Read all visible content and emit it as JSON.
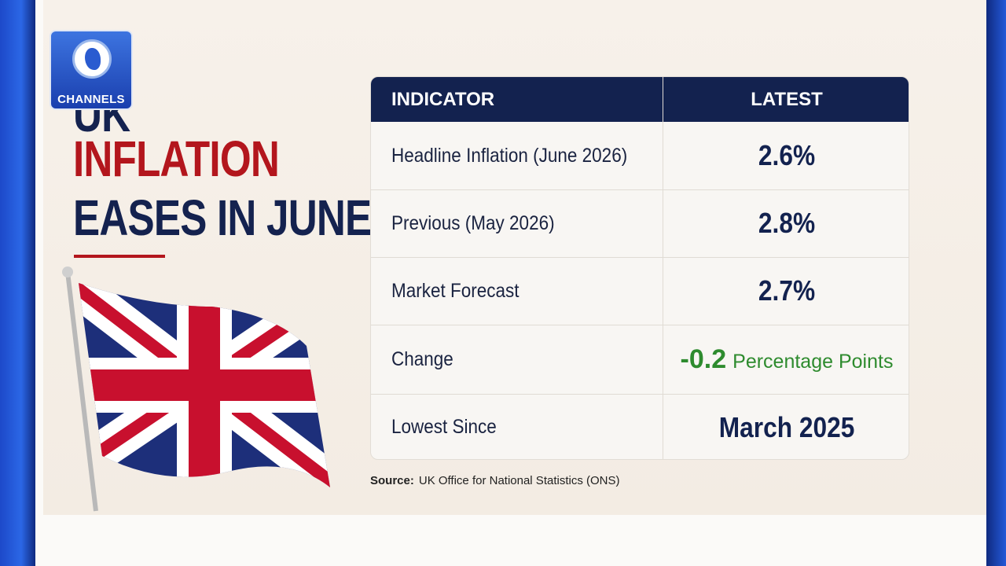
{
  "logo": {
    "name": "CHANNELS"
  },
  "headline": {
    "lines": [
      "UK",
      "INFLATION",
      "EASES IN JUNE"
    ]
  },
  "table": {
    "header": [
      "INDICATOR",
      "LATEST"
    ],
    "rows": [
      [
        "Headline Inflation (June 2026)",
        "2.6%"
      ],
      [
        "Previous (May 2026)",
        "2.8%"
      ],
      [
        "Market Forecast",
        "2.7%"
      ],
      [
        "Change",
        {
          "value": "-0.2",
          "unit": "Percentage Points"
        }
      ],
      [
        "Lowest Since",
        "March 2025"
      ]
    ]
  },
  "source": {
    "label": "Source:",
    "text": "UK Office for National Statistics (ONS)"
  }
}
